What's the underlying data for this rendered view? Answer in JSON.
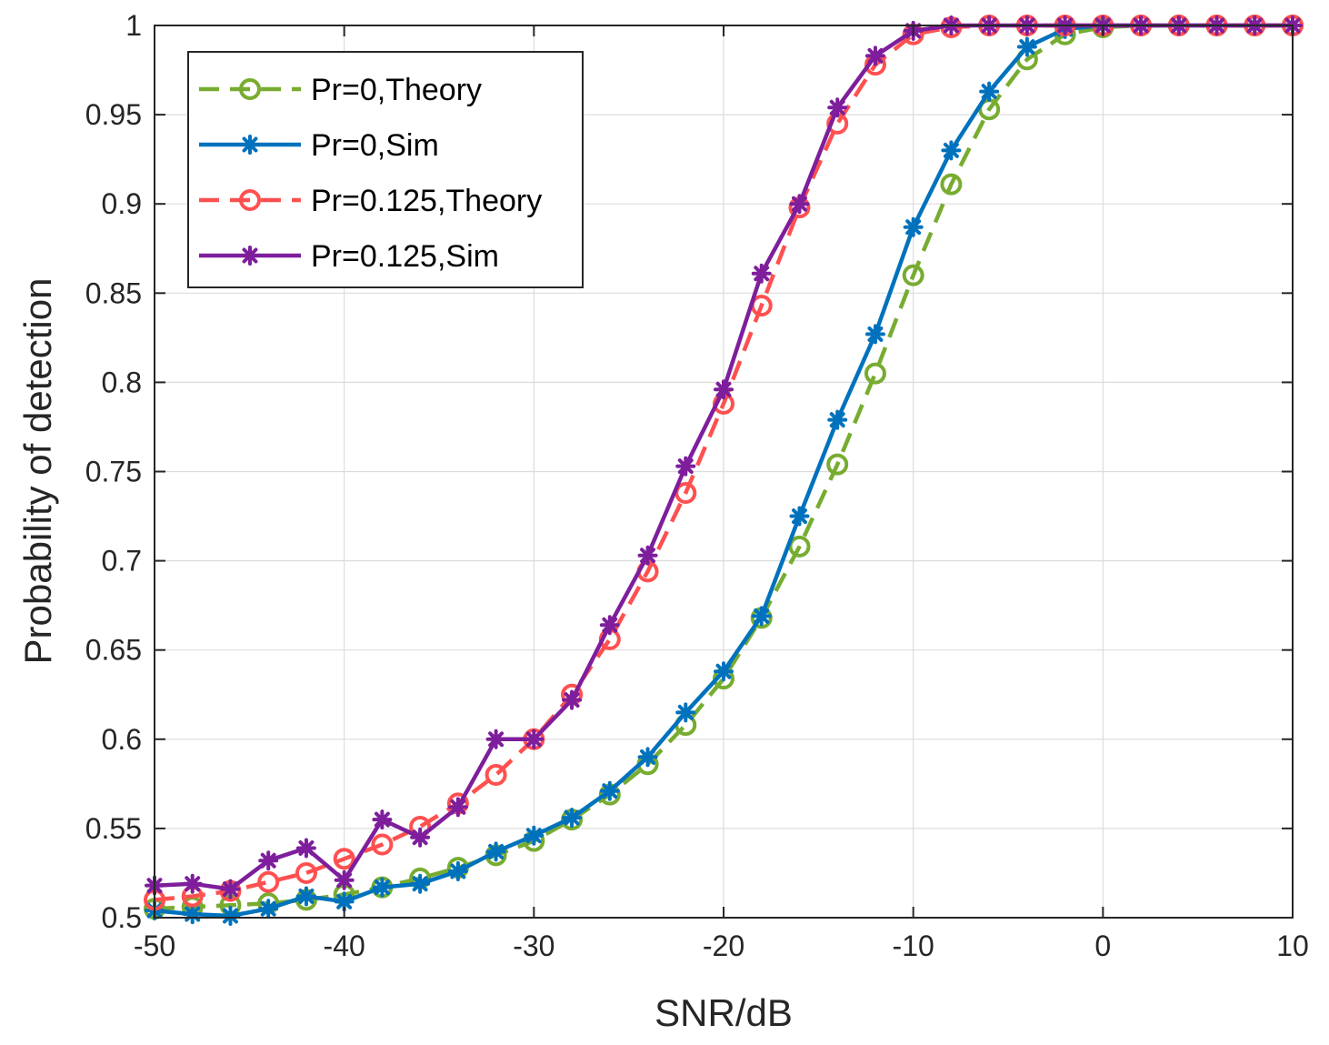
{
  "chart_data": {
    "type": "line",
    "xlabel": "SNR/dB",
    "ylabel": "Probability of detection",
    "xlim": [
      -50,
      10
    ],
    "ylim": [
      0.5,
      1
    ],
    "grid": true,
    "legend_position": "top-left",
    "x_ticks": [
      -50,
      -40,
      -30,
      -20,
      -10,
      0,
      10
    ],
    "x_tick_labels": [
      "-50",
      "-40",
      "-30",
      "-20",
      "-10",
      "0",
      "10"
    ],
    "y_ticks": [
      0.5,
      0.55,
      0.6,
      0.65,
      0.7,
      0.75,
      0.8,
      0.85,
      0.9,
      0.95,
      1
    ],
    "y_tick_labels": [
      "0.5",
      "0.55",
      "0.6",
      "0.65",
      "0.7",
      "0.75",
      "0.8",
      "0.85",
      "0.9",
      "0.95",
      "1"
    ],
    "x": [
      -50,
      -48,
      -46,
      -44,
      -42,
      -40,
      -38,
      -36,
      -34,
      -32,
      -30,
      -28,
      -26,
      -24,
      -22,
      -20,
      -18,
      -16,
      -14,
      -12,
      -10,
      -8,
      -6,
      -4,
      -2,
      0,
      2,
      4,
      6,
      8,
      10
    ],
    "series": [
      {
        "name": "Pr=0,Theory",
        "color": "#77AC30",
        "dash": true,
        "marker": "circle",
        "values": [
          0.505,
          0.506,
          0.507,
          0.508,
          0.51,
          0.513,
          0.517,
          0.522,
          0.528,
          0.535,
          0.543,
          0.555,
          0.569,
          0.586,
          0.608,
          0.634,
          0.668,
          0.708,
          0.754,
          0.805,
          0.86,
          0.911,
          0.953,
          0.981,
          0.995,
          0.999,
          1.0,
          1.0,
          1.0,
          1.0,
          1.0
        ]
      },
      {
        "name": "Pr=0,Sim",
        "color": "#0072BD",
        "dash": false,
        "marker": "star",
        "values": [
          0.504,
          0.502,
          0.501,
          0.505,
          0.512,
          0.509,
          0.517,
          0.519,
          0.526,
          0.537,
          0.546,
          0.556,
          0.571,
          0.59,
          0.615,
          0.638,
          0.669,
          0.725,
          0.779,
          0.827,
          0.887,
          0.93,
          0.963,
          0.988,
          0.998,
          1.0,
          1.0,
          1.0,
          1.0,
          1.0,
          1.0
        ]
      },
      {
        "name": "Pr=0.125,Theory",
        "color": "#FF5050",
        "dash": true,
        "marker": "circle",
        "values": [
          0.51,
          0.512,
          0.515,
          0.52,
          0.525,
          0.533,
          0.541,
          0.551,
          0.564,
          0.58,
          0.6,
          0.625,
          0.656,
          0.694,
          0.738,
          0.788,
          0.843,
          0.898,
          0.945,
          0.978,
          0.995,
          0.999,
          1.0,
          1.0,
          1.0,
          1.0,
          1.0,
          1.0,
          1.0,
          1.0,
          1.0
        ]
      },
      {
        "name": "Pr=0.125,Sim",
        "color": "#7E1E9C",
        "dash": false,
        "marker": "star",
        "values": [
          0.518,
          0.519,
          0.516,
          0.532,
          0.539,
          0.521,
          0.555,
          0.545,
          0.562,
          0.6,
          0.6,
          0.622,
          0.664,
          0.703,
          0.753,
          0.796,
          0.861,
          0.9,
          0.954,
          0.983,
          0.997,
          1.0,
          1.0,
          1.0,
          1.0,
          1.0,
          1.0,
          1.0,
          1.0,
          1.0,
          1.0
        ]
      }
    ]
  }
}
